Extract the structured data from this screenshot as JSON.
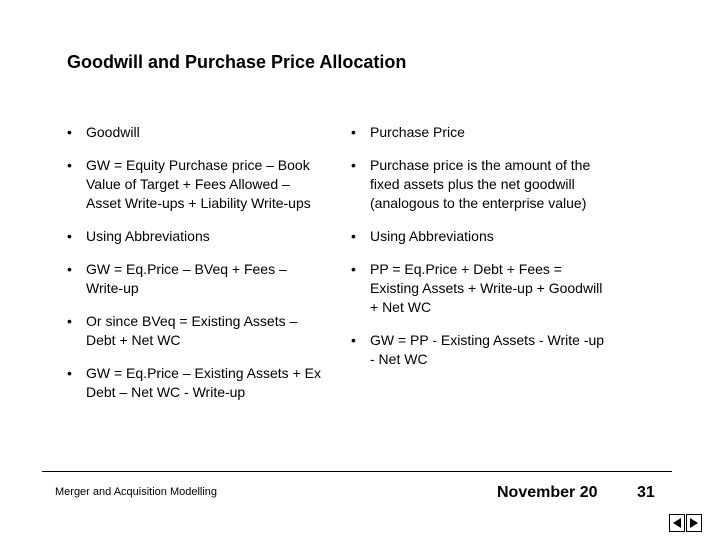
{
  "slide": {
    "title": "Goodwill and Purchase Price Allocation"
  },
  "bullet_marker": "•",
  "left_column": [
    {
      "text": "Goodwill"
    },
    {
      "text": "GW = Equity Purchase price – Book Value of Target + Fees Allowed – Asset Write-ups + Liability Write-ups"
    },
    {
      "text": "Using Abbreviations"
    },
    {
      "text": "GW = Eq.Price – BVeq + Fees – Write-up"
    },
    {
      "text": "Or since BVeq = Existing Assets – Debt + Net WC"
    },
    {
      "text": "GW = Eq.Price – Existing Assets + Ex Debt – Net WC - Write-up"
    }
  ],
  "right_column": [
    {
      "text": "Purchase Price"
    },
    {
      "text": "Purchase price is the amount of the fixed assets plus the net goodwill (analogous to the enterprise value)"
    },
    {
      "text": "Using Abbreviations"
    },
    {
      "text": "PP = Eq.Price + Debt + Fees = Existing Assets + Write-up + Goodwill + Net WC"
    },
    {
      "text": "GW = PP - Existing Assets - Write -up - Net WC"
    }
  ],
  "footer": {
    "course": "Merger and Acquisition Modelling",
    "date": "November 20",
    "page": "31"
  },
  "nav": {
    "icons": [
      "arrow-left-icon",
      "arrow-right-icon"
    ]
  }
}
